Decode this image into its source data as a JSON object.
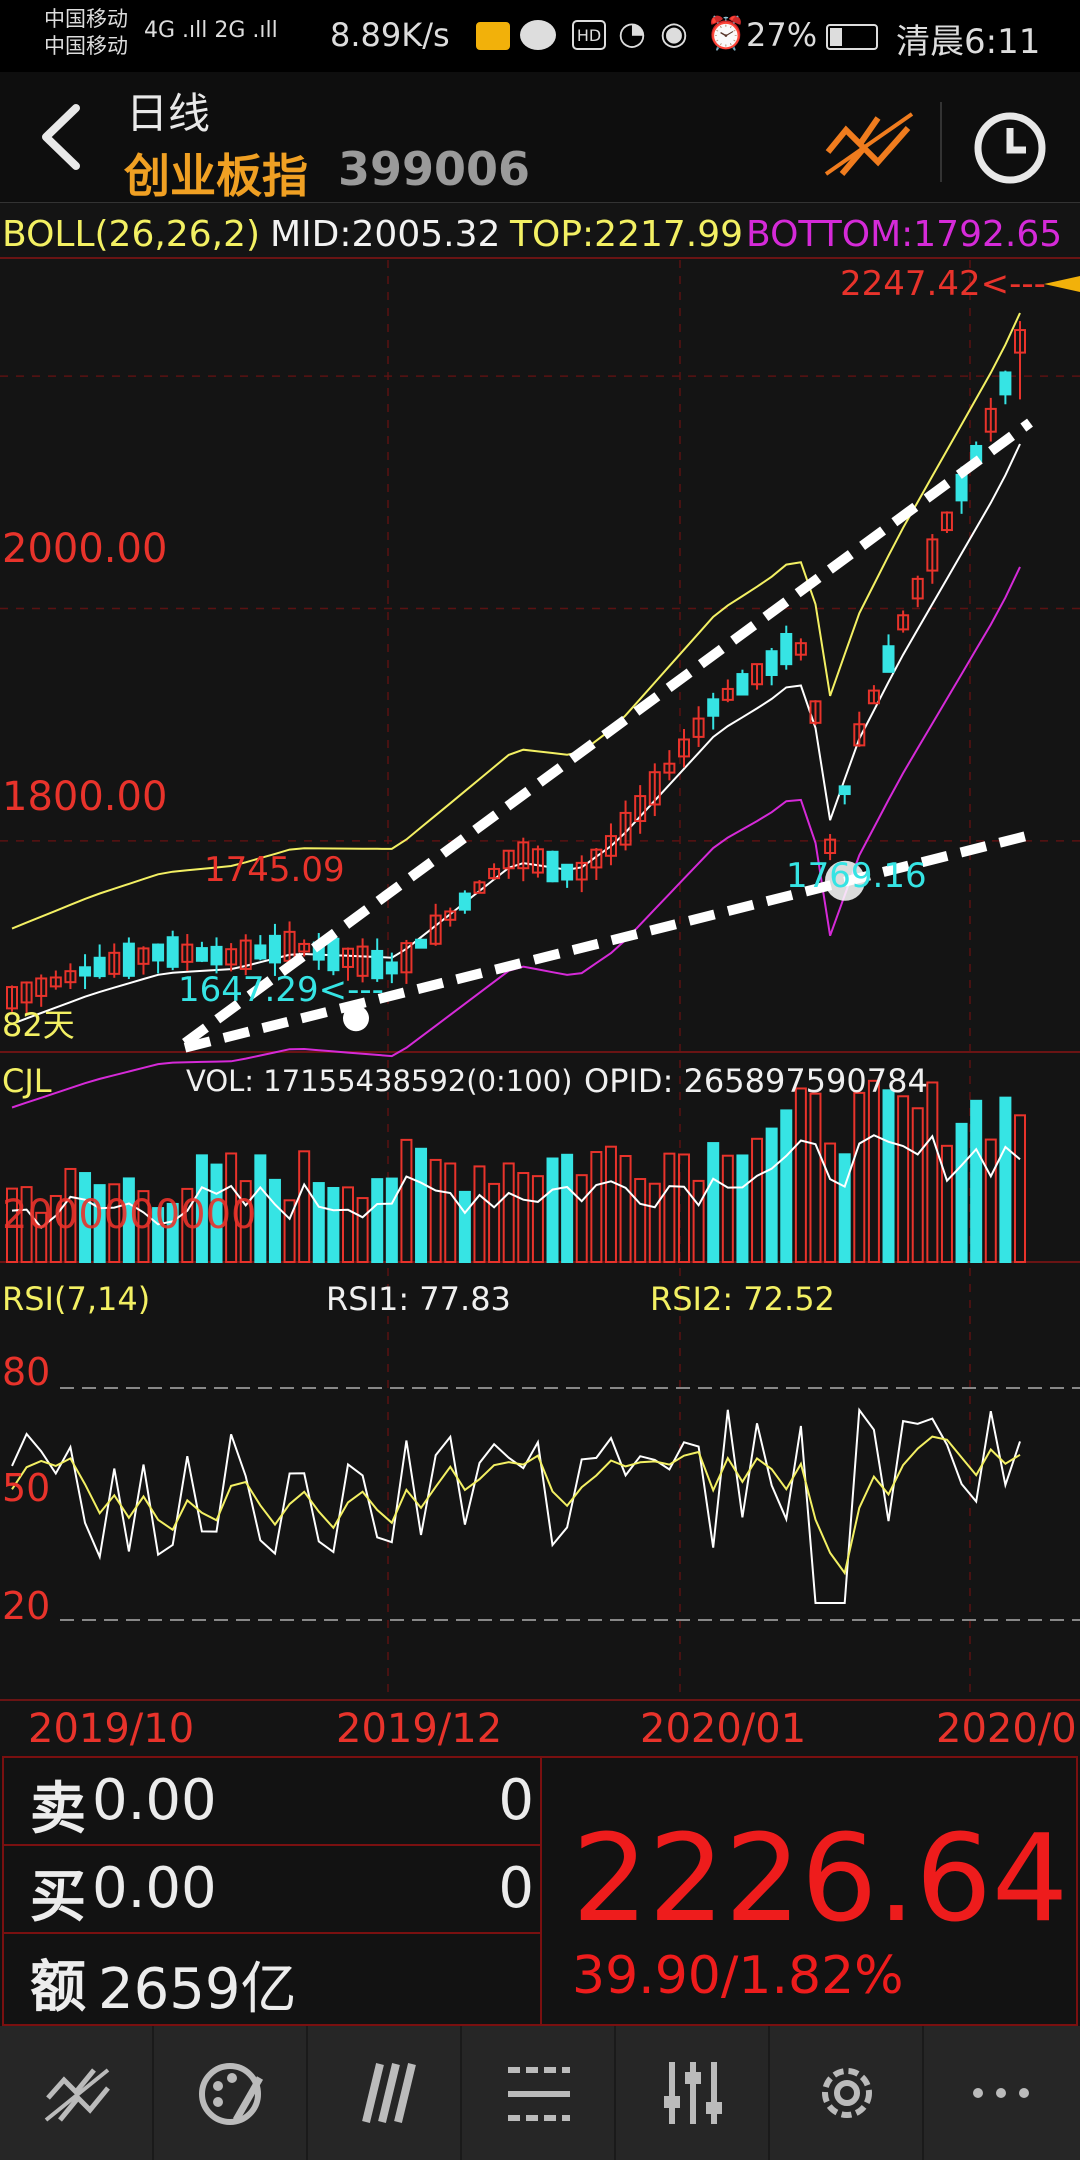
{
  "status": {
    "carrier1": "中国移动",
    "carrier2": "中国移动",
    "net": "4G .ıll 2G .ıll",
    "speed": "8.89K/s",
    "hd": "HD",
    "battery": "27%",
    "time": "清晨6:11"
  },
  "header": {
    "title": "日线",
    "name": "创业板指",
    "code": "399006"
  },
  "boll": {
    "label": "BOLL(26,26,2)",
    "mid": "MID:2005.32",
    "top": "TOP:2217.99",
    "bottom": "BOTTOM:1792.65"
  },
  "colors": {
    "up": "#e8332b",
    "down": "#36e4e4",
    "ma_yellow": "#f3f063",
    "ma_white": "#ffffff",
    "ma_magenta": "#d52ad8",
    "grid": "#5a1212"
  },
  "chart_data": [
    {
      "type": "candlestick",
      "ylim": [
        1620,
        2300
      ],
      "yticks": [
        {
          "value": 2000,
          "label": "2000.00"
        },
        {
          "value": 1800,
          "label": "1800.00"
        }
      ],
      "annotations": [
        {
          "label": "2247.42<---",
          "value": 2247.42
        },
        {
          "label": "1745.09",
          "value": 1745.09
        },
        {
          "label": "1647.29<---",
          "value": 1647.29
        },
        {
          "label": "1769.16",
          "value": 1769.16
        }
      ],
      "period_label": "82天",
      "boll_mid_start": 1690,
      "boll_mid_end": 2005.32,
      "boll_top_start": 1730,
      "boll_top_end": 2217.99,
      "boll_bottom_start": 1650,
      "boll_bottom_end": 1792.65
    },
    {
      "type": "bar",
      "name": "CJL",
      "vol_label": "VOL: 17155438592(0:100)",
      "opid_label": "OPID: 265897590784",
      "axis_label": "2000000000"
    },
    {
      "type": "line",
      "name": "RSI(7,14)",
      "rsi1_label": "RSI1: 77.83",
      "rsi2_label": "RSI2: 72.52",
      "ylim": [
        0,
        100
      ],
      "yticks": [
        {
          "value": 80,
          "label": "80"
        },
        {
          "value": 50,
          "label": "50"
        },
        {
          "value": 20,
          "label": "20"
        }
      ]
    }
  ],
  "date_axis": [
    "2019/10",
    "2019/12",
    "2020/01",
    "2020/0"
  ],
  "quote": {
    "sell_label": "卖",
    "sell_value": "0.00",
    "sell_qty": "0",
    "buy_label": "买",
    "buy_value": "0.00",
    "buy_qty": "0",
    "amount_label": "额",
    "amount_value": "2659亿",
    "price": "2226.64",
    "change": "39.90/1.82%"
  },
  "toolbar": [
    "draw-tool-icon",
    "palette-icon",
    "indicator-icon",
    "layout-icon",
    "settings-sliders-icon",
    "gear-icon",
    "more-icon"
  ]
}
